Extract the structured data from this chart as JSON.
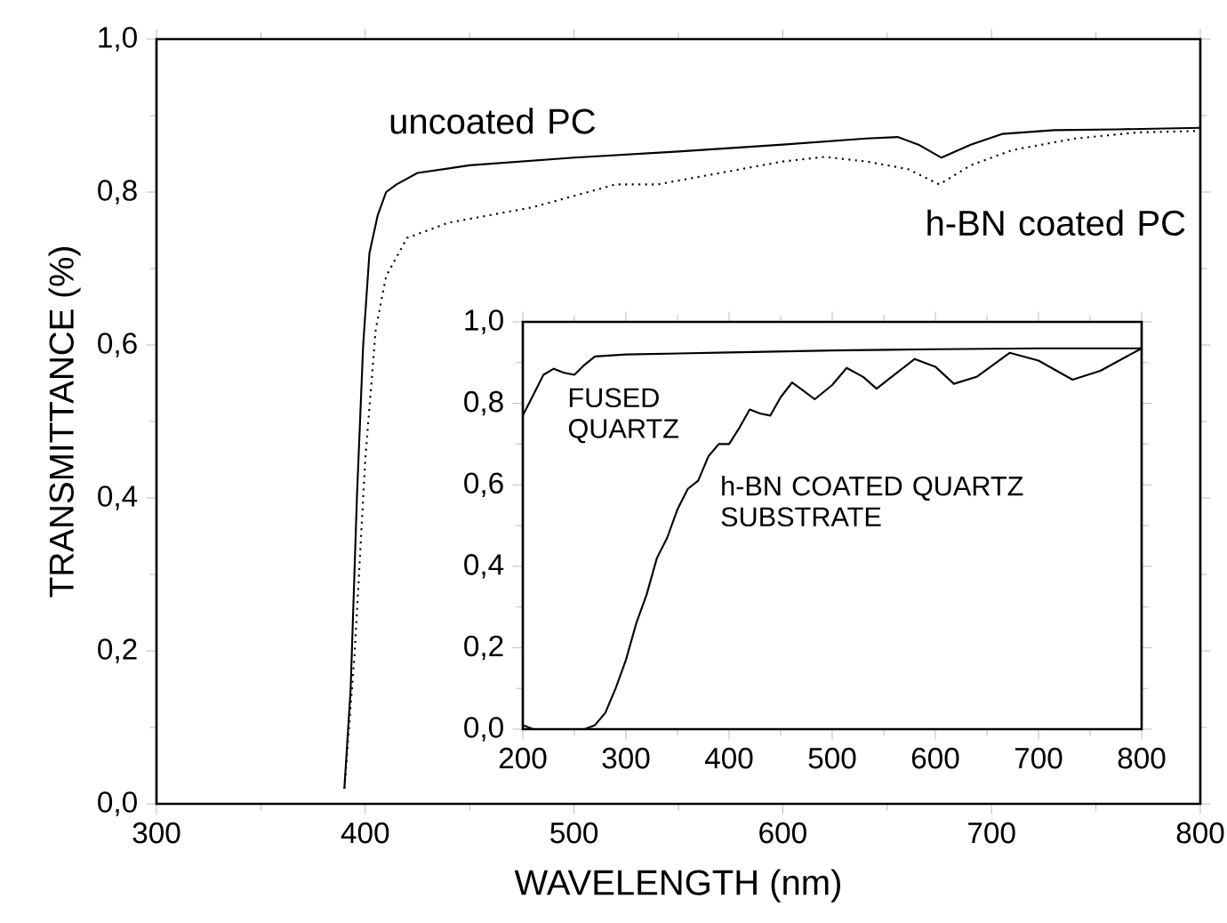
{
  "chart_data": [
    {
      "type": "line",
      "xlabel": "WAVELENGTH  (nm)",
      "ylabel": "TRANSMITTANCE (%)",
      "xlim": [
        300,
        800
      ],
      "ylim": [
        0,
        1.0
      ],
      "xticks": [
        300,
        400,
        500,
        600,
        700,
        800
      ],
      "yticks": [
        {
          "value": 0,
          "label": "0,0"
        },
        {
          "value": 0.2,
          "label": "0,2"
        },
        {
          "value": 0.4,
          "label": "0,4"
        },
        {
          "value": 0.6,
          "label": "0,6"
        },
        {
          "value": 0.8,
          "label": "0,8"
        },
        {
          "value": 1.0,
          "label": "1,0"
        }
      ],
      "series": [
        {
          "name": "uncoated PC",
          "color": "#000000",
          "line_style": "solid",
          "x": [
            390,
            393,
            396,
            399,
            402,
            406,
            410,
            415,
            425,
            450,
            500,
            550,
            600,
            640,
            655,
            665,
            676,
            690,
            705,
            730,
            760,
            800
          ],
          "values": [
            0.02,
            0.15,
            0.4,
            0.6,
            0.72,
            0.77,
            0.8,
            0.81,
            0.825,
            0.835,
            0.845,
            0.853,
            0.862,
            0.87,
            0.872,
            0.862,
            0.845,
            0.862,
            0.876,
            0.881,
            0.882,
            0.884
          ]
        },
        {
          "name": "h-BN coated PC",
          "color": "#000000",
          "line_style": "dotted",
          "x": [
            390,
            395,
            400,
            405,
            410,
            420,
            440,
            460,
            480,
            500,
            520,
            540,
            560,
            580,
            600,
            620,
            640,
            660,
            675,
            690,
            710,
            740,
            770,
            800
          ],
          "values": [
            0.02,
            0.2,
            0.45,
            0.62,
            0.69,
            0.74,
            0.76,
            0.77,
            0.78,
            0.795,
            0.81,
            0.81,
            0.82,
            0.83,
            0.84,
            0.846,
            0.84,
            0.83,
            0.81,
            0.835,
            0.855,
            0.87,
            0.878,
            0.88
          ]
        }
      ]
    },
    {
      "type": "line",
      "xlim": [
        200,
        800
      ],
      "ylim": [
        0,
        1.0
      ],
      "xticks": [
        200,
        300,
        400,
        500,
        600,
        700,
        800
      ],
      "yticks": [
        {
          "value": 0,
          "label": "0,0"
        },
        {
          "value": 0.2,
          "label": "0,2"
        },
        {
          "value": 0.4,
          "label": "0,4"
        },
        {
          "value": 0.6,
          "label": "0,6"
        },
        {
          "value": 0.8,
          "label": "0,8"
        },
        {
          "value": 1.0,
          "label": "1,0"
        }
      ],
      "series": [
        {
          "name": "FUSED QUARTZ",
          "color": "#000000",
          "x": [
            200,
            210,
            220,
            230,
            240,
            250,
            260,
            270,
            300,
            400,
            500,
            600,
            700,
            800
          ],
          "values": [
            0.77,
            0.82,
            0.87,
            0.885,
            0.875,
            0.87,
            0.895,
            0.915,
            0.92,
            0.925,
            0.93,
            0.933,
            0.935,
            0.935
          ]
        },
        {
          "name": "h-BN COATED QUARTZ SUBSTRATE",
          "color": "#000000",
          "x": [
            200,
            210,
            260,
            270,
            280,
            290,
            300,
            310,
            320,
            330,
            340,
            350,
            360,
            370,
            380,
            390,
            400,
            410,
            420,
            430,
            440,
            450,
            461,
            470,
            483,
            500,
            514,
            530,
            543,
            560,
            580,
            600,
            618,
            640,
            672,
            700,
            733,
            760,
            800
          ],
          "values": [
            0.01,
            0.0,
            0.0,
            0.01,
            0.04,
            0.1,
            0.17,
            0.26,
            0.33,
            0.42,
            0.47,
            0.54,
            0.59,
            0.61,
            0.67,
            0.7,
            0.7,
            0.74,
            0.785,
            0.775,
            0.77,
            0.815,
            0.851,
            0.835,
            0.81,
            0.845,
            0.887,
            0.865,
            0.836,
            0.87,
            0.909,
            0.89,
            0.848,
            0.865,
            0.924,
            0.905,
            0.858,
            0.88,
            0.935
          ]
        }
      ]
    }
  ]
}
